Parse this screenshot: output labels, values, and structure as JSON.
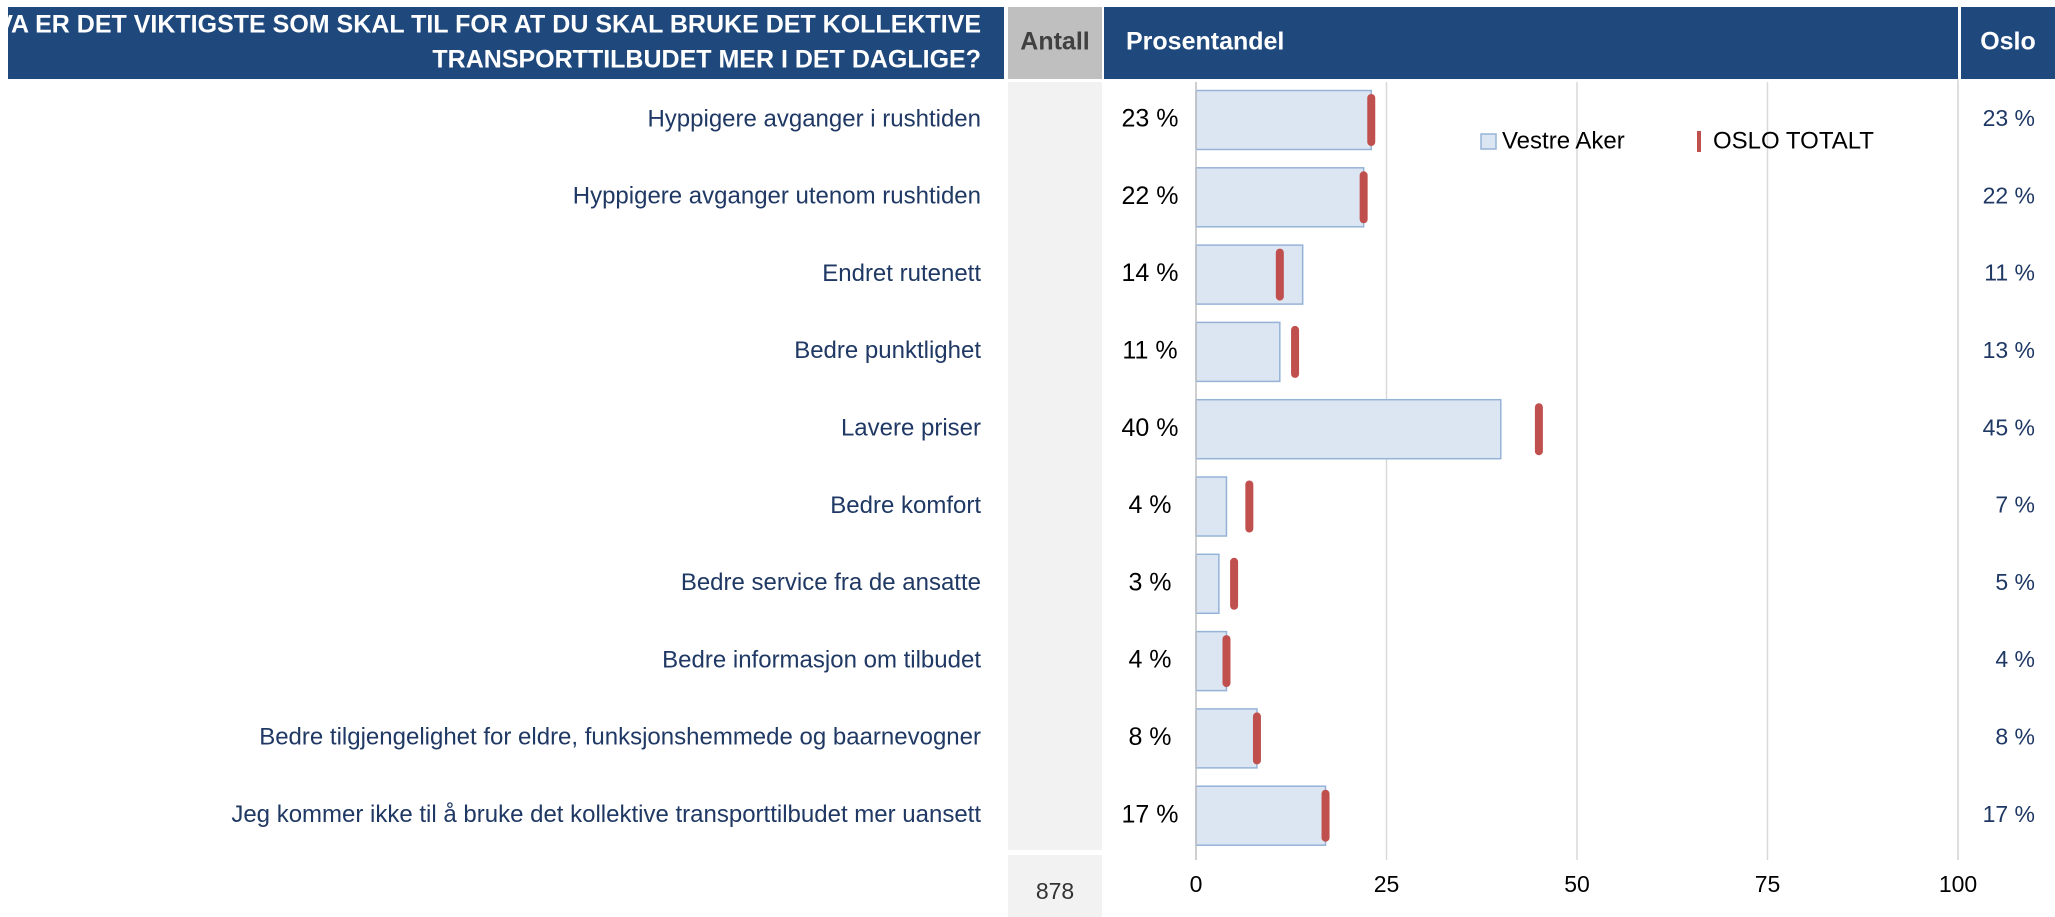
{
  "chart_data": {
    "type": "bar",
    "title": [
      "HVA ER DET VIKTIGSTE SOM SKAL TIL FOR AT DU SKAL BRUKE DET KOLLEKTIVE",
      "TRANSPORTTILBUDET MER I DET DAGLIGE?"
    ],
    "column_headers": {
      "count": "Antall",
      "share": "Prosentandel",
      "total": "Oslo"
    },
    "count": "878",
    "categories": [
      "Hyppigere avganger i rushtiden",
      "Hyppigere avganger utenom rushtiden",
      "Endret rutenett",
      "Bedre punktlighet",
      "Lavere priser",
      "Bedre komfort",
      "Bedre service fra de ansatte",
      "Bedre informasjon om tilbudet",
      "Bedre tilgjengelighet for eldre, funksjonshemmede og baarnevogner",
      "Jeg kommer ikke til å bruke det kollektive transporttilbudet mer uansett"
    ],
    "series": [
      {
        "name": "Vestre Aker",
        "color": "#dce6f2",
        "edge_color": "#95b3d7",
        "values": [
          23,
          22,
          14,
          11,
          40,
          4,
          3,
          4,
          8,
          17
        ],
        "value_labels": [
          "23 %",
          "22 %",
          "14 %",
          "11 %",
          "40 %",
          "4 %",
          "3 %",
          "4 %",
          "8 %",
          "17 %"
        ]
      },
      {
        "name": "OSLO TOTALT",
        "color": "#c0504d",
        "values": [
          23,
          22,
          11,
          13,
          45,
          7,
          5,
          4,
          8,
          17
        ],
        "value_labels": [
          "23 %",
          "22 %",
          "11 %",
          "13 %",
          "45 %",
          "7 %",
          "5 %",
          "4 %",
          "8 %",
          "17 %"
        ]
      }
    ],
    "xlim": [
      0,
      100
    ],
    "xticks": [
      0,
      25,
      50,
      75,
      100
    ],
    "grid": true
  }
}
